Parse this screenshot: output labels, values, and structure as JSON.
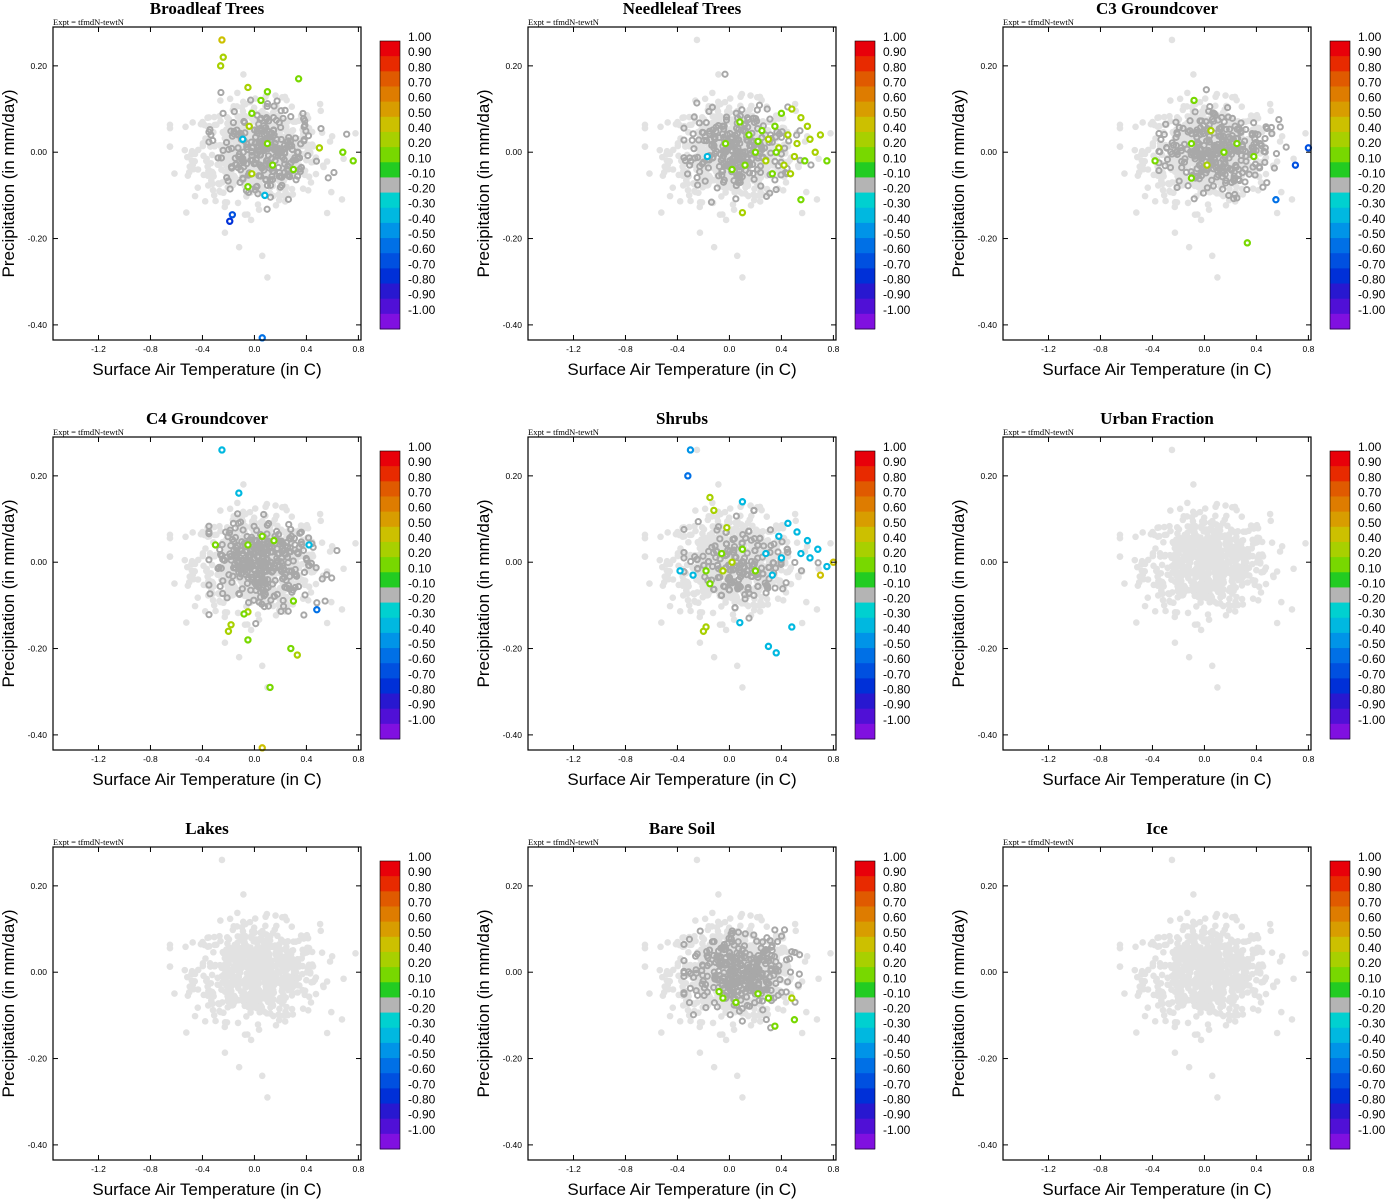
{
  "figure": {
    "expt_label": "Expt = tfmdN-tewtN",
    "xlabel": "Surface Air Temperature (in C)",
    "ylabel": "Precipitation (in mm/day)",
    "xticks": [
      -1.2,
      -0.8,
      -0.4,
      0.0,
      0.4,
      0.8
    ],
    "xtick_labels": [
      "-1.2",
      "-0.8",
      "-0.4",
      "0.0",
      "0.4",
      "0.8"
    ],
    "yticks": [
      0.2,
      0.0,
      -0.2,
      -0.4
    ],
    "ytick_labels": [
      "0.20",
      "0.00",
      "-0.20",
      "-0.40"
    ],
    "xlim": [
      -1.55,
      0.82
    ],
    "ylim": [
      -0.435,
      0.29
    ],
    "colorbar": {
      "labels": [
        "1.00",
        "0.90",
        "0.80",
        "0.70",
        "0.60",
        "0.50",
        "0.40",
        "0.20",
        "0.10",
        "-0.10",
        "-0.20",
        "-0.30",
        "-0.40",
        "-0.50",
        "-0.60",
        "-0.70",
        "-0.80",
        "-0.90",
        "-1.00"
      ],
      "colors": [
        "#e8000a",
        "#e82a00",
        "#e05a00",
        "#de7c00",
        "#d89d00",
        "#ccc000",
        "#a8d000",
        "#78d800",
        "#22cc22",
        "#b4b4b4",
        "#00d0d0",
        "#00b8e0",
        "#0094e8",
        "#0070e6",
        "#0050e0",
        "#0030d8",
        "#2818d0",
        "#5010d6",
        "#8010e0"
      ]
    },
    "colors": {
      "light_gray": "#e2e2e2",
      "mid_gray": "#a8a8a8",
      "axis": "#000000"
    }
  },
  "chart_data": [
    {
      "type": "scatter",
      "title": "Broadleaf Trees",
      "xlabel": "Surface Air Temperature (in C)",
      "ylabel": "Precipitation (in mm/day)",
      "xlim": [
        -1.55,
        0.82
      ],
      "ylim": [
        -0.435,
        0.29
      ],
      "gray_count": 260,
      "colored_points": [
        {
          "x": -0.25,
          "y": 0.26,
          "v": 0.5
        },
        {
          "x": -0.24,
          "y": 0.22,
          "v": 0.4
        },
        {
          "x": -0.26,
          "y": 0.2,
          "v": 0.3
        },
        {
          "x": -0.05,
          "y": 0.15,
          "v": 0.3
        },
        {
          "x": 0.1,
          "y": 0.14,
          "v": 0.15
        },
        {
          "x": 0.05,
          "y": 0.12,
          "v": 0.2
        },
        {
          "x": 0.34,
          "y": 0.17,
          "v": 0.2
        },
        {
          "x": -0.02,
          "y": 0.09,
          "v": 0.15
        },
        {
          "x": -0.04,
          "y": 0.06,
          "v": 0.3
        },
        {
          "x": 0.1,
          "y": 0.02,
          "v": 0.2
        },
        {
          "x": -0.09,
          "y": 0.03,
          "v": -0.25
        },
        {
          "x": 0.5,
          "y": 0.01,
          "v": 0.3
        },
        {
          "x": 0.68,
          "y": 0.0,
          "v": 0.15
        },
        {
          "x": 0.76,
          "y": -0.02,
          "v": 0.15
        },
        {
          "x": 0.3,
          "y": -0.04,
          "v": 0.15
        },
        {
          "x": -0.02,
          "y": -0.05,
          "v": 0.4
        },
        {
          "x": 0.14,
          "y": -0.03,
          "v": 0.15
        },
        {
          "x": -0.05,
          "y": -0.08,
          "v": 0.15
        },
        {
          "x": 0.08,
          "y": -0.1,
          "v": -0.25
        },
        {
          "x": -0.17,
          "y": -0.145,
          "v": -0.6
        },
        {
          "x": -0.19,
          "y": -0.16,
          "v": -0.7
        },
        {
          "x": 0.06,
          "y": -0.43,
          "v": -0.5
        }
      ]
    },
    {
      "type": "scatter",
      "title": "Needleleaf Trees",
      "xlabel": "Surface Air Temperature (in C)",
      "ylabel": "Precipitation (in mm/day)",
      "xlim": [
        -1.55,
        0.82
      ],
      "ylim": [
        -0.435,
        0.29
      ],
      "gray_count": 260,
      "colored_points": [
        {
          "x": 0.4,
          "y": 0.09,
          "v": 0.2
        },
        {
          "x": 0.48,
          "y": 0.1,
          "v": 0.3
        },
        {
          "x": 0.55,
          "y": 0.08,
          "v": 0.3
        },
        {
          "x": 0.6,
          "y": 0.06,
          "v": 0.3
        },
        {
          "x": 0.35,
          "y": 0.06,
          "v": 0.15
        },
        {
          "x": 0.25,
          "y": 0.05,
          "v": 0.2
        },
        {
          "x": 0.15,
          "y": 0.04,
          "v": 0.15
        },
        {
          "x": 0.3,
          "y": 0.03,
          "v": 0.3
        },
        {
          "x": 0.45,
          "y": 0.04,
          "v": 0.3
        },
        {
          "x": 0.52,
          "y": 0.02,
          "v": 0.3
        },
        {
          "x": 0.62,
          "y": 0.03,
          "v": 0.3
        },
        {
          "x": 0.7,
          "y": 0.04,
          "v": 0.3
        },
        {
          "x": 0.08,
          "y": 0.07,
          "v": 0.15
        },
        {
          "x": -0.03,
          "y": 0.02,
          "v": 0.15
        },
        {
          "x": 0.2,
          "y": 0.0,
          "v": 0.2
        },
        {
          "x": 0.38,
          "y": 0.01,
          "v": 0.3
        },
        {
          "x": 0.5,
          "y": -0.01,
          "v": 0.3
        },
        {
          "x": 0.58,
          "y": -0.02,
          "v": 0.15
        },
        {
          "x": 0.66,
          "y": 0.0,
          "v": 0.3
        },
        {
          "x": 0.75,
          "y": -0.02,
          "v": 0.15
        },
        {
          "x": 0.28,
          "y": -0.02,
          "v": 0.3
        },
        {
          "x": 0.12,
          "y": -0.03,
          "v": 0.15
        },
        {
          "x": 0.42,
          "y": -0.03,
          "v": 0.3
        },
        {
          "x": 0.02,
          "y": -0.04,
          "v": 0.15
        },
        {
          "x": -0.17,
          "y": -0.01,
          "v": -0.25
        },
        {
          "x": 0.33,
          "y": -0.05,
          "v": 0.15
        },
        {
          "x": 0.47,
          "y": -0.05,
          "v": 0.3
        },
        {
          "x": 0.1,
          "y": -0.14,
          "v": 0.4
        },
        {
          "x": 0.55,
          "y": -0.11,
          "v": 0.15
        },
        {
          "x": 0.22,
          "y": 0.025,
          "v": 0.2
        },
        {
          "x": 0.36,
          "y": 0.0,
          "v": 0.15
        }
      ]
    },
    {
      "type": "scatter",
      "title": "C3 Groundcover",
      "xlabel": "Surface Air Temperature (in C)",
      "ylabel": "Precipitation (in mm/day)",
      "xlim": [
        -1.55,
        0.82
      ],
      "ylim": [
        -0.435,
        0.29
      ],
      "gray_count": 300,
      "colored_points": [
        {
          "x": -0.08,
          "y": 0.12,
          "v": 0.15
        },
        {
          "x": 0.05,
          "y": 0.05,
          "v": 0.3
        },
        {
          "x": -0.1,
          "y": 0.02,
          "v": 0.15
        },
        {
          "x": 0.25,
          "y": 0.02,
          "v": 0.15
        },
        {
          "x": 0.38,
          "y": -0.01,
          "v": 0.15
        },
        {
          "x": -0.38,
          "y": -0.02,
          "v": 0.15
        },
        {
          "x": -0.1,
          "y": -0.06,
          "v": 0.15
        },
        {
          "x": 0.02,
          "y": -0.03,
          "v": 0.4
        },
        {
          "x": 0.7,
          "y": -0.03,
          "v": -0.6
        },
        {
          "x": 0.8,
          "y": 0.01,
          "v": -0.6
        },
        {
          "x": 0.55,
          "y": -0.11,
          "v": -0.5
        },
        {
          "x": 0.33,
          "y": -0.21,
          "v": 0.15
        },
        {
          "x": 0.15,
          "y": 0.0,
          "v": 0.2
        }
      ]
    },
    {
      "type": "scatter",
      "title": "C4 Groundcover",
      "xlabel": "Surface Air Temperature (in C)",
      "ylabel": "Precipitation (in mm/day)",
      "xlim": [
        -1.55,
        0.82
      ],
      "ylim": [
        -0.435,
        0.29
      ],
      "gray_count": 330,
      "colored_points": [
        {
          "x": -0.25,
          "y": 0.26,
          "v": -0.3
        },
        {
          "x": -0.12,
          "y": 0.16,
          "v": -0.25
        },
        {
          "x": -0.3,
          "y": 0.04,
          "v": 0.15
        },
        {
          "x": -0.05,
          "y": 0.04,
          "v": 0.15
        },
        {
          "x": 0.06,
          "y": 0.06,
          "v": 0.15
        },
        {
          "x": 0.15,
          "y": 0.05,
          "v": 0.15
        },
        {
          "x": 0.42,
          "y": 0.04,
          "v": -0.3
        },
        {
          "x": 0.3,
          "y": -0.09,
          "v": 0.2
        },
        {
          "x": 0.48,
          "y": -0.11,
          "v": -0.5
        },
        {
          "x": -0.05,
          "y": -0.115,
          "v": 0.3
        },
        {
          "x": -0.08,
          "y": -0.12,
          "v": 0.2
        },
        {
          "x": -0.18,
          "y": -0.145,
          "v": 0.3
        },
        {
          "x": -0.2,
          "y": -0.16,
          "v": 0.4
        },
        {
          "x": -0.05,
          "y": -0.18,
          "v": 0.15
        },
        {
          "x": 0.28,
          "y": -0.2,
          "v": 0.2
        },
        {
          "x": 0.33,
          "y": -0.215,
          "v": 0.3
        },
        {
          "x": 0.12,
          "y": -0.29,
          "v": 0.2
        },
        {
          "x": 0.06,
          "y": -0.43,
          "v": 0.5
        }
      ]
    },
    {
      "type": "scatter",
      "title": "Shrubs",
      "xlabel": "Surface Air Temperature (in C)",
      "ylabel": "Precipitation (in mm/day)",
      "xlim": [
        -1.55,
        0.82
      ],
      "ylim": [
        -0.435,
        0.29
      ],
      "gray_count": 290,
      "colored_points": [
        {
          "x": -0.3,
          "y": 0.26,
          "v": -0.4
        },
        {
          "x": -0.32,
          "y": 0.2,
          "v": -0.5
        },
        {
          "x": -0.15,
          "y": 0.15,
          "v": 0.4
        },
        {
          "x": -0.12,
          "y": 0.12,
          "v": 0.3
        },
        {
          "x": 0.1,
          "y": 0.14,
          "v": -0.3
        },
        {
          "x": -0.02,
          "y": 0.08,
          "v": 0.3
        },
        {
          "x": 0.45,
          "y": 0.09,
          "v": -0.3
        },
        {
          "x": 0.52,
          "y": 0.07,
          "v": -0.3
        },
        {
          "x": 0.38,
          "y": 0.06,
          "v": -0.25
        },
        {
          "x": 0.6,
          "y": 0.05,
          "v": -0.25
        },
        {
          "x": 0.68,
          "y": 0.03,
          "v": -0.25
        },
        {
          "x": 0.55,
          "y": 0.02,
          "v": -0.25
        },
        {
          "x": 0.62,
          "y": 0.01,
          "v": -0.3
        },
        {
          "x": 0.75,
          "y": -0.01,
          "v": -0.25
        },
        {
          "x": 0.8,
          "y": 0.0,
          "v": 0.5
        },
        {
          "x": 0.7,
          "y": -0.03,
          "v": 0.5
        },
        {
          "x": 0.4,
          "y": 0.01,
          "v": -0.3
        },
        {
          "x": 0.28,
          "y": 0.02,
          "v": -0.25
        },
        {
          "x": 0.1,
          "y": 0.03,
          "v": 0.15
        },
        {
          "x": 0.02,
          "y": 0.0,
          "v": 0.3
        },
        {
          "x": -0.06,
          "y": 0.02,
          "v": 0.2
        },
        {
          "x": -0.18,
          "y": -0.02,
          "v": 0.15
        },
        {
          "x": -0.05,
          "y": -0.02,
          "v": 0.4
        },
        {
          "x": 0.2,
          "y": -0.02,
          "v": 0.15
        },
        {
          "x": 0.33,
          "y": -0.03,
          "v": -0.25
        },
        {
          "x": -0.38,
          "y": -0.02,
          "v": -0.3
        },
        {
          "x": -0.28,
          "y": -0.03,
          "v": -0.25
        },
        {
          "x": -0.15,
          "y": -0.05,
          "v": 0.15
        },
        {
          "x": 0.08,
          "y": -0.14,
          "v": -0.3
        },
        {
          "x": 0.48,
          "y": -0.15,
          "v": -0.3
        },
        {
          "x": -0.18,
          "y": -0.15,
          "v": 0.3
        },
        {
          "x": -0.2,
          "y": -0.16,
          "v": 0.4
        },
        {
          "x": 0.3,
          "y": -0.195,
          "v": -0.3
        },
        {
          "x": 0.36,
          "y": -0.21,
          "v": -0.3
        }
      ]
    },
    {
      "type": "scatter",
      "title": "Urban Fraction",
      "xlabel": "Surface Air Temperature (in C)",
      "ylabel": "Precipitation (in mm/day)",
      "xlim": [
        -1.55,
        0.82
      ],
      "ylim": [
        -0.435,
        0.29
      ],
      "gray_count": 0,
      "colored_points": []
    },
    {
      "type": "scatter",
      "title": "Lakes",
      "xlabel": "Surface Air Temperature (in C)",
      "ylabel": "Precipitation (in mm/day)",
      "xlim": [
        -1.55,
        0.82
      ],
      "ylim": [
        -0.435,
        0.29
      ],
      "gray_count": 0,
      "colored_points": []
    },
    {
      "type": "scatter",
      "title": "Bare Soil",
      "xlabel": "Surface Air Temperature (in C)",
      "ylabel": "Precipitation (in mm/day)",
      "xlim": [
        -1.55,
        0.82
      ],
      "ylim": [
        -0.435,
        0.29
      ],
      "gray_count": 330,
      "colored_points": [
        {
          "x": -0.08,
          "y": -0.045,
          "v": 0.15
        },
        {
          "x": -0.05,
          "y": -0.06,
          "v": 0.15
        },
        {
          "x": 0.05,
          "y": -0.07,
          "v": 0.15
        },
        {
          "x": 0.22,
          "y": -0.05,
          "v": 0.2
        },
        {
          "x": 0.3,
          "y": -0.06,
          "v": 0.2
        },
        {
          "x": 0.48,
          "y": -0.06,
          "v": 0.3
        },
        {
          "x": 0.5,
          "y": -0.11,
          "v": 0.15
        },
        {
          "x": 0.35,
          "y": -0.125,
          "v": 0.15
        }
      ]
    },
    {
      "type": "scatter",
      "title": "Ice",
      "xlabel": "Surface Air Temperature (in C)",
      "ylabel": "Precipitation (in mm/day)",
      "xlim": [
        -1.55,
        0.82
      ],
      "ylim": [
        -0.435,
        0.29
      ],
      "gray_count": 0,
      "colored_points": []
    }
  ]
}
